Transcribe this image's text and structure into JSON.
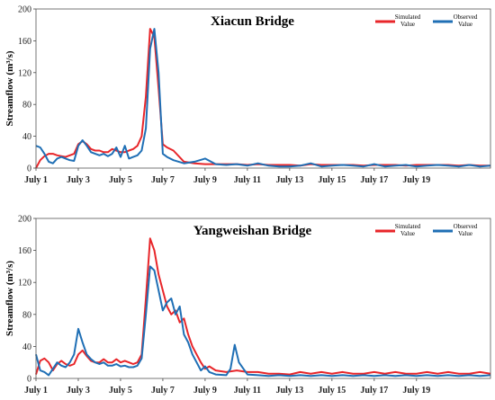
{
  "chart_data": [
    {
      "type": "line",
      "title": "Xiacun Bridge",
      "ylabel": "Streamflow (m³/s)",
      "ylim": [
        0,
        200
      ],
      "yticks": [
        "0",
        "40",
        "80",
        "120",
        "160",
        "200"
      ],
      "xlim": [
        0,
        21.5
      ],
      "xticks": [
        {
          "label": "July 1",
          "x": 0
        },
        {
          "label": "July 3",
          "x": 2
        },
        {
          "label": "July 5",
          "x": 4
        },
        {
          "label": "July 7",
          "x": 6
        },
        {
          "label": "July 9",
          "x": 8
        },
        {
          "label": "July 11",
          "x": 10
        },
        {
          "label": "July 13",
          "x": 12
        },
        {
          "label": "July 15",
          "x": 14
        },
        {
          "label": "July 17",
          "x": 16
        },
        {
          "label": "July 19",
          "x": 18
        }
      ],
      "legend_placement": "top-right",
      "series": [
        {
          "name": "Simulated Value",
          "color": "#e8262a",
          "x": [
            0,
            0.2,
            0.4,
            0.6,
            0.8,
            1.0,
            1.2,
            1.4,
            1.6,
            1.8,
            2.0,
            2.2,
            2.4,
            2.6,
            2.8,
            3.0,
            3.2,
            3.4,
            3.6,
            3.8,
            4.0,
            4.2,
            4.4,
            4.6,
            4.8,
            5.0,
            5.2,
            5.4,
            5.6,
            5.8,
            6.0,
            6.2,
            6.5,
            7.0,
            7.5,
            8.0,
            8.5,
            9.0,
            9.5,
            10.0,
            10.5,
            11.0,
            11.5,
            12.0,
            12.5,
            13.0,
            13.5,
            14.0,
            14.5,
            15.0,
            15.5,
            16.0,
            16.5,
            17.0,
            17.5,
            18.0,
            18.5,
            19.0,
            19.5,
            20.0,
            20.5,
            21.0,
            21.5
          ],
          "values": [
            0,
            10,
            15,
            18,
            18,
            16,
            15,
            14,
            16,
            18,
            30,
            34,
            30,
            24,
            22,
            22,
            20,
            20,
            24,
            22,
            20,
            20,
            22,
            24,
            28,
            40,
            90,
            175,
            165,
            100,
            30,
            26,
            22,
            8,
            6,
            5,
            5,
            5,
            5,
            4,
            5,
            4,
            4,
            4,
            3,
            5,
            4,
            4,
            4,
            4,
            3,
            4,
            4,
            4,
            3,
            4,
            4,
            4,
            4,
            3,
            4,
            3,
            3
          ]
        },
        {
          "name": "Observed Value",
          "color": "#1f6fb5",
          "x": [
            0,
            0.2,
            0.4,
            0.6,
            0.8,
            1.0,
            1.2,
            1.4,
            1.6,
            1.8,
            2.0,
            2.2,
            2.4,
            2.6,
            2.8,
            3.0,
            3.2,
            3.4,
            3.6,
            3.8,
            4.0,
            4.2,
            4.4,
            4.6,
            4.8,
            5.0,
            5.2,
            5.4,
            5.6,
            5.8,
            6.0,
            6.2,
            6.5,
            7.0,
            7.5,
            8.0,
            8.5,
            9.0,
            9.5,
            10.0,
            10.5,
            11.0,
            11.5,
            12.0,
            12.5,
            13.0,
            13.5,
            14.0,
            14.5,
            15.0,
            15.5,
            16.0,
            16.5,
            17.0,
            17.5,
            18.0,
            18.5,
            19.0,
            19.5,
            20.0,
            20.5,
            21.0,
            21.5
          ],
          "values": [
            28,
            26,
            18,
            8,
            6,
            12,
            14,
            12,
            10,
            9,
            28,
            35,
            28,
            20,
            18,
            16,
            18,
            15,
            18,
            26,
            14,
            28,
            12,
            14,
            16,
            22,
            50,
            150,
            175,
            120,
            18,
            14,
            10,
            6,
            8,
            12,
            5,
            4,
            5,
            3,
            6,
            3,
            2,
            2,
            3,
            6,
            2,
            3,
            4,
            3,
            2,
            5,
            2,
            3,
            4,
            2,
            3,
            4,
            3,
            2,
            4,
            2,
            3
          ]
        }
      ]
    },
    {
      "type": "line",
      "title": "Yangweishan Bridge",
      "ylabel": "Streamflow (m³/s)",
      "ylim": [
        0,
        200
      ],
      "yticks": [
        "0",
        "40",
        "80",
        "120",
        "160",
        "200"
      ],
      "xlim": [
        0,
        21.5
      ],
      "xticks": [
        {
          "label": "July 1",
          "x": 0
        },
        {
          "label": "July 3",
          "x": 2
        },
        {
          "label": "July 5",
          "x": 4
        },
        {
          "label": "July 7",
          "x": 6
        },
        {
          "label": "July 9",
          "x": 8
        },
        {
          "label": "July 11",
          "x": 10
        },
        {
          "label": "July 13",
          "x": 12
        },
        {
          "label": "July 15",
          "x": 14
        },
        {
          "label": "July 17",
          "x": 16
        },
        {
          "label": "July 19",
          "x": 18
        }
      ],
      "legend_placement": "top-right",
      "series": [
        {
          "name": "Simulated Value",
          "color": "#e8262a",
          "x": [
            0,
            0.2,
            0.4,
            0.6,
            0.8,
            1.0,
            1.2,
            1.4,
            1.6,
            1.8,
            2.0,
            2.2,
            2.4,
            2.6,
            2.8,
            3.0,
            3.2,
            3.4,
            3.6,
            3.8,
            4.0,
            4.2,
            4.4,
            4.6,
            4.8,
            5.0,
            5.2,
            5.4,
            5.6,
            5.8,
            6.0,
            6.2,
            6.4,
            6.6,
            6.8,
            7.0,
            7.2,
            7.4,
            7.6,
            7.8,
            8.0,
            8.2,
            8.5,
            9.0,
            9.5,
            10.0,
            10.5,
            11.0,
            11.5,
            12.0,
            12.5,
            13.0,
            13.5,
            14.0,
            14.5,
            15.0,
            15.5,
            16.0,
            16.5,
            17.0,
            17.5,
            18.0,
            18.5,
            19.0,
            19.5,
            20.0,
            20.5,
            21.0,
            21.5
          ],
          "values": [
            5,
            22,
            25,
            20,
            10,
            18,
            22,
            18,
            16,
            18,
            30,
            35,
            28,
            22,
            20,
            20,
            24,
            20,
            20,
            24,
            20,
            22,
            20,
            18,
            20,
            30,
            100,
            175,
            160,
            130,
            110,
            90,
            80,
            85,
            70,
            75,
            55,
            40,
            30,
            20,
            12,
            15,
            10,
            8,
            10,
            8,
            8,
            6,
            6,
            5,
            8,
            6,
            8,
            6,
            8,
            6,
            6,
            8,
            6,
            8,
            6,
            6,
            8,
            6,
            8,
            6,
            6,
            8,
            6
          ]
        },
        {
          "name": "Observed Value",
          "color": "#1f6fb5",
          "x": [
            0,
            0.2,
            0.4,
            0.6,
            0.8,
            1.0,
            1.2,
            1.4,
            1.6,
            1.8,
            2.0,
            2.2,
            2.4,
            2.6,
            2.8,
            3.0,
            3.2,
            3.4,
            3.6,
            3.8,
            4.0,
            4.2,
            4.4,
            4.6,
            4.8,
            5.0,
            5.2,
            5.4,
            5.6,
            5.8,
            6.0,
            6.2,
            6.4,
            6.6,
            6.8,
            7.0,
            7.2,
            7.4,
            7.6,
            7.8,
            8.0,
            8.2,
            8.5,
            9.0,
            9.2,
            9.4,
            9.6,
            10.0,
            10.5,
            11.0,
            11.5,
            12.0,
            12.5,
            13.0,
            13.5,
            14.0,
            14.5,
            15.0,
            15.5,
            16.0,
            16.5,
            17.0,
            17.5,
            18.0,
            18.5,
            19.0,
            19.5,
            20.0,
            20.5,
            21.0,
            21.5
          ],
          "values": [
            30,
            10,
            8,
            4,
            12,
            20,
            16,
            14,
            20,
            30,
            62,
            45,
            30,
            24,
            20,
            18,
            20,
            16,
            16,
            18,
            15,
            16,
            14,
            14,
            16,
            25,
            80,
            140,
            135,
            110,
            85,
            95,
            100,
            80,
            90,
            55,
            45,
            30,
            20,
            10,
            15,
            8,
            5,
            4,
            12,
            42,
            20,
            5,
            4,
            3,
            4,
            3,
            4,
            3,
            4,
            3,
            4,
            3,
            4,
            3,
            4,
            3,
            4,
            3,
            4,
            3,
            4,
            3,
            4,
            3,
            4
          ]
        }
      ]
    }
  ]
}
